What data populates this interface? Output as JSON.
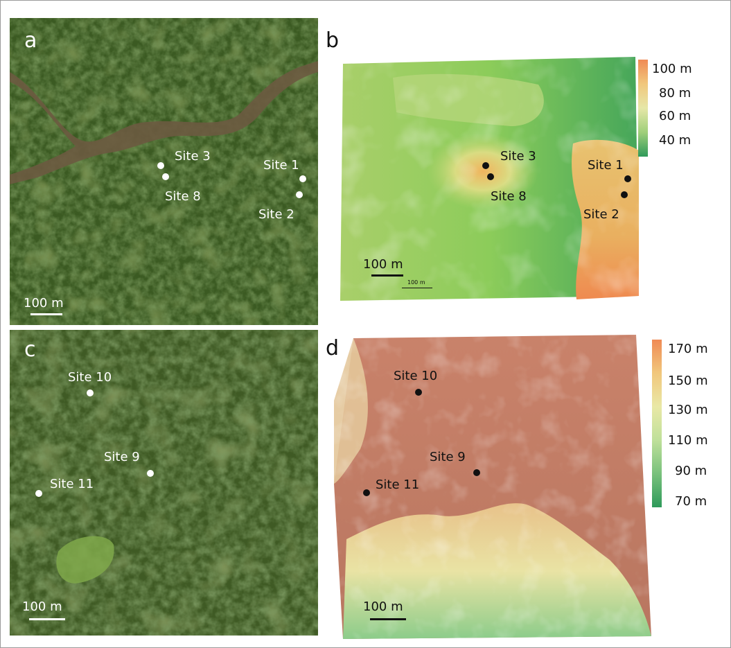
{
  "panels": {
    "a": {
      "letter": "a",
      "sites": {
        "s3": "Site 3",
        "s8": "Site 8",
        "s1": "Site 1",
        "s2": "Site 2"
      },
      "scale": "100 m"
    },
    "b": {
      "letter": "b",
      "sites": {
        "s3": "Site 3",
        "s8": "Site 8",
        "s1": "Site 1",
        "s2": "Site 2"
      },
      "scale": "100 m",
      "scale_small": "100 m",
      "colorbar": {
        "labels": [
          "100 m",
          "80 m",
          "60 m",
          "40 m"
        ],
        "colors": [
          "#f08a54",
          "#f1c77c",
          "#e6e7a8",
          "#9fcf7a",
          "#2f9a5a"
        ]
      }
    },
    "c": {
      "letter": "c",
      "sites": {
        "s10": "Site 10",
        "s9": "Site 9",
        "s11": "Site 11"
      },
      "scale": "100 m"
    },
    "d": {
      "letter": "d",
      "sites": {
        "s10": "Site 10",
        "s9": "Site 9",
        "s11": "Site 11"
      },
      "scale": "100 m",
      "colorbar": {
        "labels": [
          "170 m",
          "150 m",
          "130 m",
          "110 m",
          "90 m",
          "70 m"
        ],
        "colors": [
          "#f08a54",
          "#f1c77c",
          "#e9e8a6",
          "#bfe09a",
          "#79c17c",
          "#2f9a5a"
        ]
      }
    }
  }
}
